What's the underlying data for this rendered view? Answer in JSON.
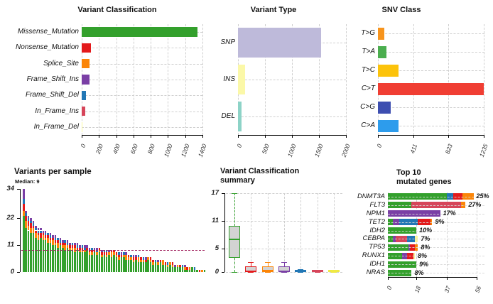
{
  "figure": {
    "background": "#ffffff",
    "grid_color": "#cfcfcf",
    "axis_color": "#000000"
  },
  "chart_data": [
    {
      "id": "variant_classification",
      "type": "bar",
      "orientation": "horizontal",
      "title": "Variant Classification",
      "categories": [
        "Missense_Mutation",
        "Nonsense_Mutation",
        "Splice_Site",
        "Frame_Shift_Ins",
        "Frame_Shift_Del",
        "In_Frame_Ins",
        "In_Frame_Del"
      ],
      "values": [
        1342,
        103,
        92,
        91,
        52,
        42,
        10
      ],
      "colors": [
        "#33A02C",
        "#E31A1C",
        "#FB8508",
        "#7A3FA5",
        "#2277B5",
        "#D6455A",
        "#FBF9A0"
      ],
      "xlim": [
        0,
        1400
      ],
      "xticks": [
        0,
        200,
        400,
        600,
        800,
        1000,
        1200,
        1400
      ],
      "grid": "dashed"
    },
    {
      "id": "variant_type",
      "type": "bar",
      "orientation": "horizontal",
      "title": "Variant Type",
      "categories": [
        "SNP",
        "INS",
        "DEL"
      ],
      "values": [
        1537,
        133,
        62
      ],
      "colors": [
        "#BEBADA",
        "#FBF8A8",
        "#8DD3C7"
      ],
      "xlim": [
        0,
        2000
      ],
      "xticks": [
        0,
        500,
        1000,
        1500,
        2000
      ],
      "grid": "dashed"
    },
    {
      "id": "snv_class",
      "type": "bar",
      "orientation": "horizontal",
      "title": "SNV Class",
      "categories": [
        "T>G",
        "T>A",
        "T>C",
        "C>T",
        "C>G",
        "C>A"
      ],
      "values": [
        72,
        99,
        242,
        1235,
        149,
        237
      ],
      "colors": [
        "#F7941D",
        "#4BAE4F",
        "#FCC30B",
        "#F03E33",
        "#3D4EB0",
        "#2D9CEC"
      ],
      "xlim": [
        0,
        1235
      ],
      "xticks": [
        0,
        411,
        823,
        1235
      ],
      "grid": "dashed"
    },
    {
      "id": "variants_per_sample",
      "type": "bar",
      "stacked": true,
      "title": "Variants per sample",
      "subtitle": "Median: 9",
      "median": 9,
      "median_line_color": "#A32561",
      "ylim": [
        0,
        34
      ],
      "yticks": [
        0,
        11,
        22,
        34
      ],
      "segment_order": [
        "g",
        "o",
        "r",
        "b",
        "p"
      ],
      "segment_colors": {
        "g": "#33A02C",
        "o": "#FB8508",
        "r": "#E31A1C",
        "b": "#2277B5",
        "p": "#7A3FA5"
      },
      "bars": [
        [
          23,
          2,
          3,
          2,
          4
        ],
        [
          18,
          3,
          2,
          1,
          1
        ],
        [
          17,
          2,
          2,
          1,
          1
        ],
        [
          16,
          2,
          2,
          1,
          1
        ],
        [
          16,
          2,
          1,
          1,
          1
        ],
        [
          14,
          2,
          1,
          1,
          1
        ],
        [
          13,
          2,
          1,
          1,
          1
        ],
        [
          14,
          0,
          2,
          1,
          1
        ],
        [
          13,
          2,
          1,
          0,
          1
        ],
        [
          13,
          1,
          1,
          1,
          1
        ],
        [
          12,
          2,
          1,
          1,
          0
        ],
        [
          12,
          1,
          1,
          1,
          1
        ],
        [
          11,
          2,
          1,
          0,
          1
        ],
        [
          11,
          1,
          1,
          1,
          1
        ],
        [
          10,
          2,
          1,
          1,
          0
        ],
        [
          11,
          0,
          1,
          1,
          1
        ],
        [
          10,
          1,
          1,
          0,
          1
        ],
        [
          9,
          2,
          1,
          1,
          0
        ],
        [
          10,
          1,
          0,
          1,
          1
        ],
        [
          9,
          1,
          1,
          0,
          1
        ],
        [
          9,
          1,
          1,
          1,
          0
        ],
        [
          8,
          2,
          1,
          0,
          1
        ],
        [
          9,
          0,
          1,
          1,
          1
        ],
        [
          8,
          1,
          1,
          0,
          1
        ],
        [
          8,
          1,
          1,
          1,
          0
        ],
        [
          8,
          1,
          0,
          1,
          1
        ],
        [
          9,
          0,
          1,
          0,
          1
        ],
        [
          7,
          1,
          1,
          0,
          1
        ],
        [
          7,
          1,
          1,
          1,
          0
        ],
        [
          8,
          0,
          1,
          0,
          1
        ],
        [
          7,
          1,
          0,
          1,
          1
        ],
        [
          8,
          1,
          1,
          0,
          0
        ],
        [
          6,
          1,
          1,
          0,
          1
        ],
        [
          7,
          0,
          1,
          1,
          0
        ],
        [
          6,
          1,
          1,
          1,
          0
        ],
        [
          7,
          1,
          0,
          0,
          1
        ],
        [
          6,
          2,
          1,
          0,
          0
        ],
        [
          7,
          1,
          1,
          0,
          0
        ],
        [
          6,
          1,
          1,
          0,
          0
        ],
        [
          5,
          1,
          1,
          1,
          0
        ],
        [
          6,
          0,
          1,
          0,
          1
        ],
        [
          6,
          1,
          0,
          1,
          0
        ],
        [
          5,
          2,
          0,
          0,
          1
        ],
        [
          5,
          1,
          1,
          0,
          0
        ],
        [
          5,
          1,
          0,
          1,
          0
        ],
        [
          4,
          1,
          1,
          0,
          1
        ],
        [
          5,
          0,
          1,
          0,
          1
        ],
        [
          4,
          2,
          0,
          1,
          0
        ],
        [
          4,
          1,
          1,
          0,
          0
        ],
        [
          4,
          1,
          0,
          1,
          0
        ],
        [
          4,
          0,
          1,
          0,
          1
        ],
        [
          5,
          1,
          0,
          0,
          0
        ],
        [
          4,
          1,
          1,
          0,
          0
        ],
        [
          3,
          1,
          1,
          0,
          0
        ],
        [
          4,
          0,
          0,
          1,
          0
        ],
        [
          3,
          1,
          0,
          0,
          1
        ],
        [
          4,
          0,
          1,
          0,
          0
        ],
        [
          3,
          2,
          0,
          0,
          0
        ],
        [
          3,
          0,
          1,
          0,
          0
        ],
        [
          2,
          1,
          0,
          1,
          0
        ],
        [
          3,
          1,
          0,
          0,
          0
        ],
        [
          2,
          1,
          1,
          0,
          0
        ],
        [
          2,
          0,
          0,
          0,
          1
        ],
        [
          2,
          1,
          0,
          0,
          0
        ],
        [
          2,
          0,
          1,
          0,
          0
        ],
        [
          2,
          0,
          0,
          1,
          0
        ],
        [
          1,
          1,
          0,
          0,
          1
        ],
        [
          1,
          0,
          1,
          0,
          0
        ],
        [
          1,
          1,
          0,
          0,
          0
        ],
        [
          2,
          0,
          0,
          0,
          0
        ],
        [
          1,
          0,
          0,
          1,
          0
        ],
        [
          1,
          0,
          0,
          0,
          0
        ],
        [
          0,
          0,
          1,
          0,
          0
        ],
        [
          0,
          1,
          0,
          0,
          0
        ],
        [
          1,
          0,
          0,
          0,
          0
        ]
      ]
    },
    {
      "id": "variant_classification_summary",
      "type": "boxplot",
      "title": "Variant Classification\nsummary",
      "ylim": [
        0,
        17
      ],
      "yticks": [
        0,
        5,
        11,
        17
      ],
      "box_fill": "#D3D3D3",
      "boxes": [
        {
          "category": "Missense_Mutation",
          "color": "#33A02C",
          "lo": 0,
          "q1": 3,
          "median": 7,
          "q3": 10,
          "hi": 17
        },
        {
          "category": "Nonsense_Mutation",
          "color": "#E31A1C",
          "lo": 0,
          "q1": 0,
          "median": 0.2,
          "q3": 1.2,
          "hi": 2.2
        },
        {
          "category": "Splice_Site",
          "color": "#FB8508",
          "lo": 0,
          "q1": 0,
          "median": 0.3,
          "q3": 1.2,
          "hi": 2.2
        },
        {
          "category": "Frame_Shift_Ins",
          "color": "#7A3FA5",
          "lo": 0,
          "q1": 0,
          "median": 0.2,
          "q3": 1.3,
          "hi": 2.2
        },
        {
          "category": "Frame_Shift_Del",
          "color": "#2277B5",
          "lo": 0,
          "q1": 0,
          "median": 0.1,
          "q3": 0.4,
          "hi": 0.6
        },
        {
          "category": "In_Frame_Ins",
          "color": "#D6455A",
          "lo": 0,
          "q1": 0,
          "median": 0.1,
          "q3": 0.4,
          "hi": 0.5
        },
        {
          "category": "In_Frame_Del",
          "color": "#EFE945",
          "lo": 0,
          "q1": 0,
          "median": 0.1,
          "q3": 0.4,
          "hi": 0.5
        }
      ]
    },
    {
      "id": "top_mutated_genes",
      "type": "bar",
      "stacked": true,
      "orientation": "horizontal",
      "title": "Top 10\nmutated genes",
      "genes": [
        "DNMT3A",
        "FLT3",
        "NPM1",
        "TET2",
        "IDH2",
        "CEBPA",
        "TP53",
        "RUNX1",
        "IDH1",
        "NRAS"
      ],
      "percents": [
        "25%",
        "27%",
        "17%",
        "9%",
        "10%",
        "7%",
        "8%",
        "8%",
        "9%",
        "8%"
      ],
      "xlim": [
        0,
        56
      ],
      "xticks": [
        0,
        18,
        37,
        56
      ],
      "segment_colors": {
        "g": "#33A02C",
        "o": "#FB8508",
        "r": "#E31A1C",
        "b": "#2277B5",
        "p": "#7A3FA5",
        "c": "#D6455A",
        "y": "#FBF39B"
      },
      "segments": [
        [
          [
            "g",
            37
          ],
          [
            "b",
            4
          ],
          [
            "r",
            6
          ],
          [
            "o",
            7
          ]
        ],
        [
          [
            "g",
            15
          ],
          [
            "c",
            31
          ],
          [
            "o",
            3
          ]
        ],
        [
          [
            "p",
            33
          ]
        ],
        [
          [
            "g",
            3
          ],
          [
            "p",
            4
          ],
          [
            "b",
            12
          ],
          [
            "r",
            8
          ],
          [
            "o",
            1
          ]
        ],
        [
          [
            "g",
            18
          ]
        ],
        [
          [
            "g",
            3
          ],
          [
            "p",
            2
          ],
          [
            "c",
            7
          ],
          [
            "b",
            5
          ],
          [
            "y",
            2
          ]
        ],
        [
          [
            "g",
            13
          ],
          [
            "p",
            1
          ],
          [
            "r",
            3
          ],
          [
            "o",
            2
          ]
        ],
        [
          [
            "g",
            9
          ],
          [
            "p",
            3
          ],
          [
            "r",
            4
          ],
          [
            "y",
            1
          ]
        ],
        [
          [
            "g",
            18
          ]
        ],
        [
          [
            "g",
            15
          ]
        ]
      ]
    }
  ]
}
